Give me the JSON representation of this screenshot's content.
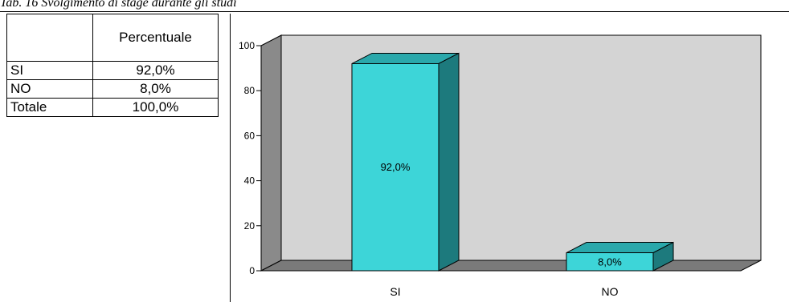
{
  "caption": "Tab. 16 Svolgimento di stage durante gli studi",
  "table": {
    "header": "Percentuale",
    "rows": [
      {
        "label": "SI",
        "value": "92,0%"
      },
      {
        "label": "NO",
        "value": "8,0%"
      },
      {
        "label": "Totale",
        "value": "100,0%"
      }
    ]
  },
  "chart_data": {
    "type": "bar",
    "style": "3d",
    "categories": [
      "SI",
      "NO"
    ],
    "values": [
      92.0,
      8.0
    ],
    "data_labels": [
      "92,0%",
      "8,0%"
    ],
    "yticks": [
      "0",
      "20",
      "40",
      "60",
      "80",
      "100"
    ],
    "ylim": [
      0,
      100
    ],
    "grid": false,
    "legend": "none",
    "colors": {
      "bar_front": "#3dd5d8",
      "bar_top": "#2aa8ab",
      "bar_side": "#1d7a7d",
      "wall": "#d4d4d4",
      "floor": "#7a7a7a",
      "side_wall": "#8a8a8a"
    }
  }
}
